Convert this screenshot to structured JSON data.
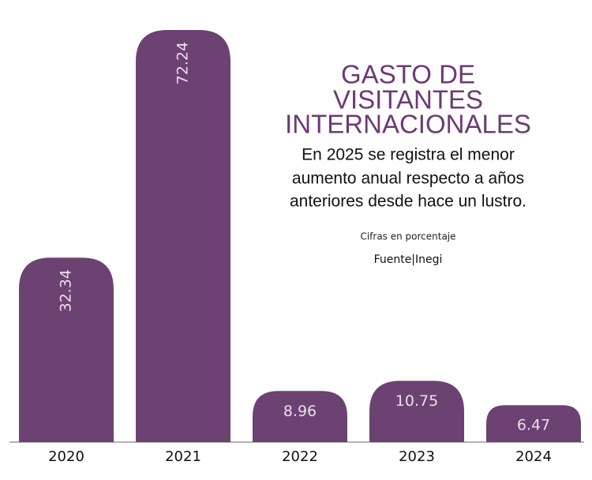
{
  "chart_data": {
    "type": "bar",
    "title_lines": [
      "GASTO DE",
      "VISITANTES",
      "INTERNACIONALES"
    ],
    "subtitle_lines": [
      "En 2025 se registra el menor",
      "aumento anual respecto a años",
      "anteriores desde hace un lustro."
    ],
    "note": "Cifras en porcentaje",
    "source": "Fuente|Inegi",
    "categories": [
      "2020",
      "2021",
      "2022",
      "2023",
      "2024"
    ],
    "values": [
      32.34,
      72.24,
      8.96,
      10.75,
      6.47
    ],
    "color": "#6c4272"
  }
}
